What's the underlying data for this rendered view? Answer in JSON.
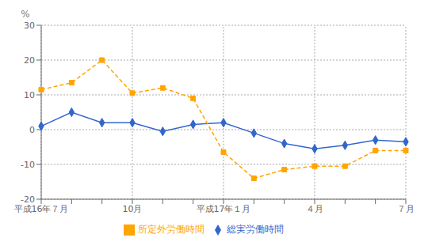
{
  "chart_data": {
    "type": "line",
    "ylabel": "%",
    "categories": [
      "平成16年７月",
      null,
      null,
      "10月",
      null,
      null,
      "平成17年１月",
      null,
      null,
      "４月",
      null,
      null,
      "７月"
    ],
    "series": [
      {
        "name": "総実労働時間",
        "color": "#3366CC",
        "marker": "diamond",
        "line_style": "solid",
        "values": [
          1.0,
          5.0,
          2.0,
          2.0,
          -0.5,
          1.5,
          2.0,
          -1.0,
          -4.0,
          -5.5,
          -4.5,
          -3.0,
          -3.5
        ]
      },
      {
        "name": "所定外労働時間",
        "color": "#FFA500",
        "marker": "square",
        "line_style": "dashed",
        "values": [
          11.5,
          13.5,
          20.0,
          10.5,
          12.0,
          9.0,
          -6.5,
          -14.0,
          -11.5,
          -10.5,
          -10.5,
          -6.0,
          -6.0
        ]
      }
    ],
    "ylim": [
      -20,
      30
    ],
    "yticks": [
      -20,
      -10,
      0,
      10,
      20,
      30
    ],
    "grid": true,
    "legend": "bottom"
  }
}
